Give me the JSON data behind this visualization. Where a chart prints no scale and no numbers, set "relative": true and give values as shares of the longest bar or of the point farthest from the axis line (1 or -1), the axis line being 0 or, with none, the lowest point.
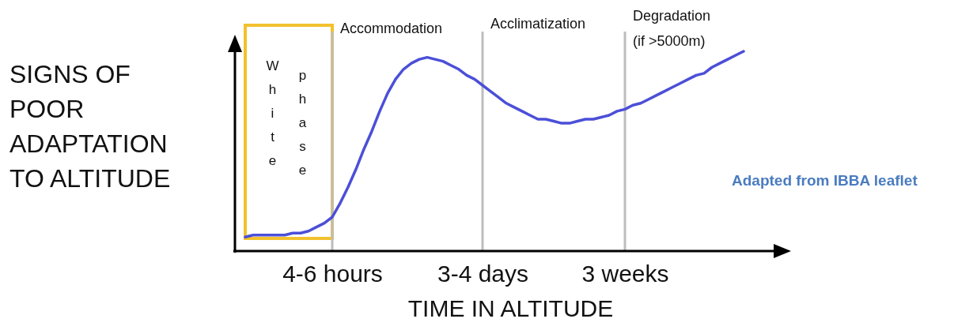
{
  "chart_data": {
    "type": "line",
    "relative": true,
    "xlabel": "TIME IN ALTITUDE",
    "ylabel": "SIGNS OF POOR ADAPTATION TO ALTITUDE",
    "categories": [
      null,
      null,
      null,
      null,
      null,
      null,
      null,
      null,
      null,
      null,
      null,
      "4-6 hours",
      null,
      null,
      null,
      null,
      null,
      null,
      null,
      null,
      null,
      null,
      null,
      null,
      null,
      null,
      null,
      null,
      null,
      null,
      "3-4 days",
      null,
      null,
      null,
      null,
      null,
      null,
      null,
      null,
      null,
      null,
      null,
      null,
      null,
      null,
      null,
      null,
      null,
      "3 weeks",
      null,
      null,
      null,
      null,
      null,
      null,
      null,
      null,
      null,
      null,
      null,
      null,
      null,
      null,
      null
    ],
    "series": [
      {
        "color": "#4b4fd8",
        "values": [
          0.07,
          0.08,
          0.08,
          0.08,
          0.08,
          0.08,
          0.09,
          0.09,
          0.1,
          0.12,
          0.14,
          0.17,
          0.24,
          0.32,
          0.41,
          0.51,
          0.6,
          0.7,
          0.79,
          0.86,
          0.91,
          0.94,
          0.96,
          0.97,
          0.96,
          0.95,
          0.93,
          0.91,
          0.88,
          0.86,
          0.83,
          0.8,
          0.77,
          0.74,
          0.72,
          0.7,
          0.68,
          0.66,
          0.66,
          0.65,
          0.64,
          0.64,
          0.65,
          0.66,
          0.66,
          0.67,
          0.68,
          0.7,
          0.71,
          0.73,
          0.74,
          0.76,
          0.78,
          0.8,
          0.82,
          0.84,
          0.86,
          0.88,
          0.89,
          0.92,
          0.94,
          0.96,
          0.98,
          1.0
        ]
      }
    ],
    "ref_lines": [
      {
        "axis": "x",
        "value": "4-6 hours",
        "color": "#bdbdbd"
      },
      {
        "axis": "x",
        "value": "3-4 days",
        "color": "#bdbdbd"
      },
      {
        "axis": "x",
        "value": "3 weeks",
        "color": "#bdbdbd"
      }
    ],
    "annotations": [
      "White phase",
      "Accommodation",
      "Acclimatization",
      "Degradation\n(if >5000m)",
      "Adapted from IBBA leaflet"
    ],
    "grid": false
  }
}
